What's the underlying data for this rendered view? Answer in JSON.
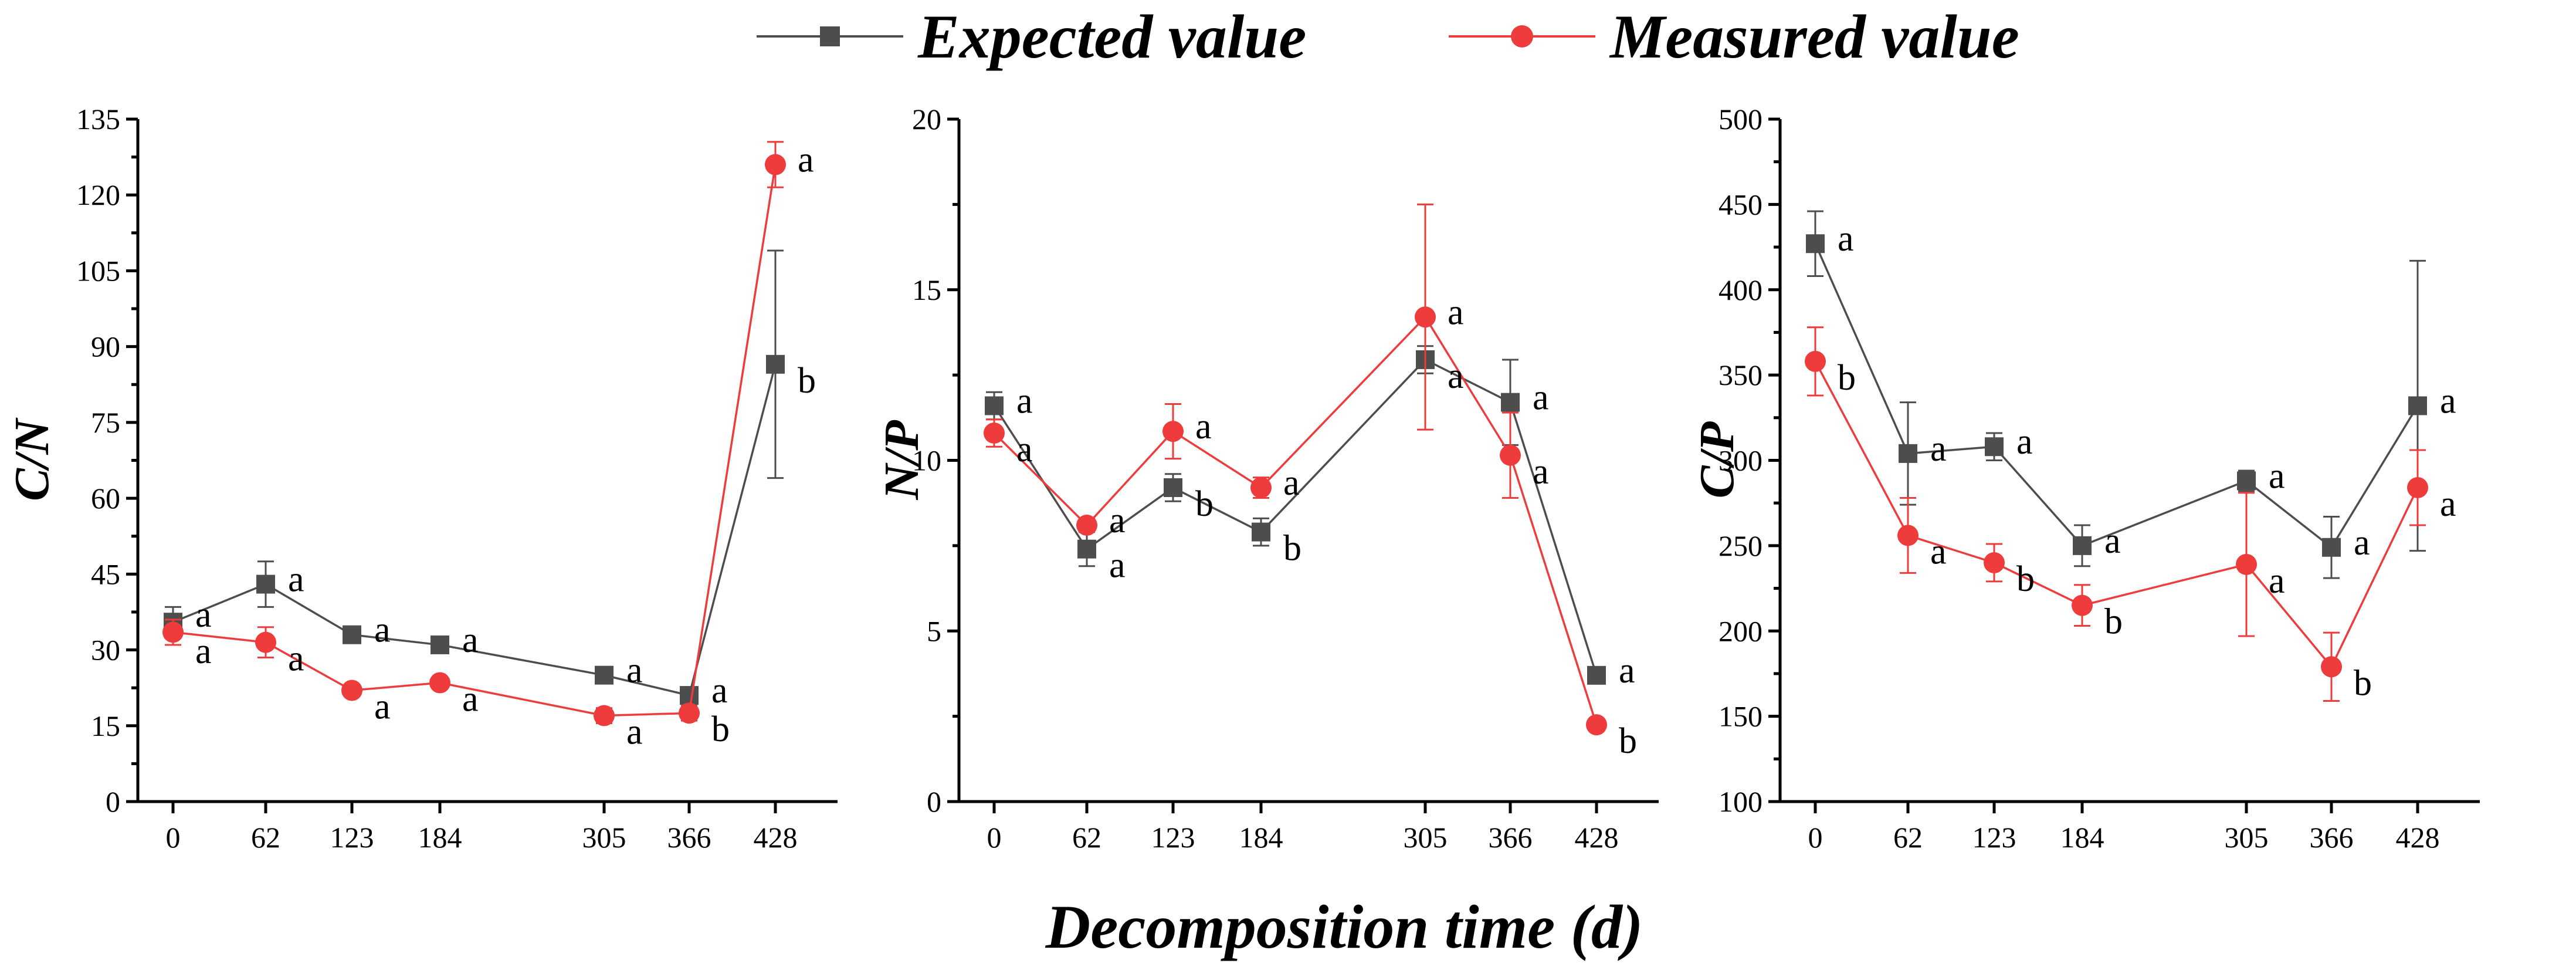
{
  "chart_data": {
    "type": "line",
    "x_title": "Decomposition time (d)",
    "x_ticks": [
      0,
      62,
      123,
      184,
      305,
      366,
      428
    ],
    "legend": [
      {
        "name": "Expected value",
        "color": "#4d4d4d",
        "marker": "square"
      },
      {
        "name": "Measured value",
        "color": "#ee3b3b",
        "marker": "circle"
      }
    ],
    "panels": [
      {
        "ylabel": "C/N",
        "ylim": [
          0,
          135
        ],
        "yticks": [
          0,
          15,
          30,
          45,
          60,
          75,
          90,
          105,
          120,
          135
        ],
        "series": [
          {
            "name": "Expected value",
            "x": [
              0,
              62,
              123,
              184,
              305,
              366,
              428
            ],
            "values": [
              35.5,
              43.0,
              33.0,
              31.0,
              25.0,
              21.0,
              86.5
            ],
            "errors": [
              3.0,
              4.5,
              1.5,
              1.0,
              1.0,
              1.0,
              22.5
            ],
            "letters": [
              "a",
              "a",
              "a",
              "a",
              "a",
              "a",
              "b"
            ]
          },
          {
            "name": "Measured value",
            "x": [
              0,
              62,
              123,
              184,
              305,
              366,
              428
            ],
            "values": [
              33.5,
              31.5,
              22.0,
              23.5,
              17.0,
              17.5,
              126.0
            ],
            "errors": [
              2.5,
              3.0,
              1.0,
              1.0,
              1.5,
              1.5,
              4.5
            ],
            "letters": [
              "a",
              "a",
              "a",
              "a",
              "a",
              "b",
              "a"
            ]
          }
        ]
      },
      {
        "ylabel": "N/P",
        "ylim": [
          0,
          20
        ],
        "yticks": [
          0,
          5,
          10,
          15,
          20
        ],
        "series": [
          {
            "name": "Expected value",
            "x": [
              0,
              62,
              123,
              184,
              305,
              366,
              428
            ],
            "values": [
              11.6,
              7.4,
              9.2,
              7.9,
              12.95,
              11.7,
              3.7
            ],
            "errors": [
              0.4,
              0.5,
              0.4,
              0.4,
              0.4,
              1.25,
              0.2
            ],
            "letters": [
              "a",
              "a",
              "b",
              "b",
              "a",
              "a",
              "a"
            ]
          },
          {
            "name": "Measured value",
            "x": [
              0,
              62,
              123,
              184,
              305,
              366,
              428
            ],
            "values": [
              10.8,
              8.1,
              10.85,
              9.2,
              14.2,
              10.15,
              2.25
            ],
            "errors": [
              0.4,
              0.2,
              0.8,
              0.3,
              3.3,
              1.25,
              0.15
            ],
            "letters": [
              "a",
              "a",
              "a",
              "a",
              "a",
              "a",
              "b"
            ]
          }
        ]
      },
      {
        "ylabel": "C/P",
        "ylim": [
          100,
          500
        ],
        "yticks": [
          100,
          150,
          200,
          250,
          300,
          350,
          400,
          450,
          500
        ],
        "series": [
          {
            "name": "Expected value",
            "x": [
              0,
              62,
              123,
              184,
              305,
              366,
              428
            ],
            "values": [
              427,
              304,
              308,
              250,
              288,
              249,
              332
            ],
            "errors": [
              19,
              30,
              8,
              12,
              6,
              18,
              85
            ],
            "letters": [
              "a",
              "a",
              "a",
              "a",
              "a",
              "a",
              "a"
            ]
          },
          {
            "name": "Measured value",
            "x": [
              0,
              62,
              123,
              184,
              305,
              366,
              428
            ],
            "values": [
              358,
              256,
              240,
              215,
              239,
              179,
              284
            ],
            "errors": [
              20,
              22,
              11,
              12,
              42,
              20,
              22
            ],
            "letters": [
              "b",
              "a",
              "b",
              "b",
              "a",
              "b",
              "a"
            ]
          }
        ]
      }
    ]
  }
}
